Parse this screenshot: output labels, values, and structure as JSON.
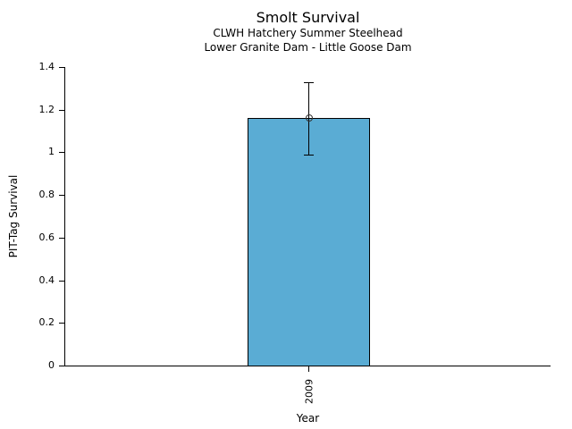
{
  "chart_data": {
    "type": "bar",
    "title": "Smolt Survival",
    "subtitle1": "CLWH Hatchery Summer Steelhead",
    "subtitle2": "Lower Granite Dam - Little Goose Dam",
    "xlabel": "Year",
    "ylabel": "PIT-Tag Survival",
    "categories": [
      "2009"
    ],
    "values": [
      1.16
    ],
    "error_low": [
      0.99
    ],
    "error_high": [
      1.33
    ],
    "ylim": [
      0,
      1.4
    ],
    "yticks": [
      0,
      0.2,
      0.4,
      0.6,
      0.8,
      1,
      1.2,
      1.4
    ],
    "ytick_labels": [
      "0",
      "0.2",
      "0.4",
      "0.6",
      "0.8",
      "1",
      "1.2",
      "1.4"
    ],
    "bar_color": "#5aacd4",
    "edge_color": "#000000",
    "marker": "open-circle",
    "background": "#ffffff",
    "grid": false,
    "legend": "none"
  }
}
